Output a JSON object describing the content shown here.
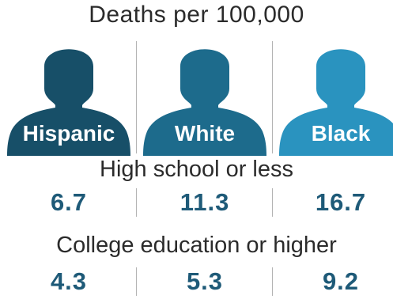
{
  "chart_data": {
    "type": "table",
    "title": "Deaths per 100,000",
    "categories": [
      "Hispanic",
      "White",
      "Black"
    ],
    "category_colors": [
      "#174f68",
      "#1d6b8c",
      "#2a93bf"
    ],
    "series": [
      {
        "name": "High school or less",
        "values": [
          "6.7",
          "11.3",
          "16.7"
        ]
      },
      {
        "name": "College education or higher",
        "values": [
          "4.3",
          "5.3",
          "9.2"
        ]
      }
    ]
  },
  "colors": {
    "value_text": "#1e5a78",
    "divider": "#b3b3b3"
  },
  "icons": [
    "person-silhouette-icon"
  ]
}
